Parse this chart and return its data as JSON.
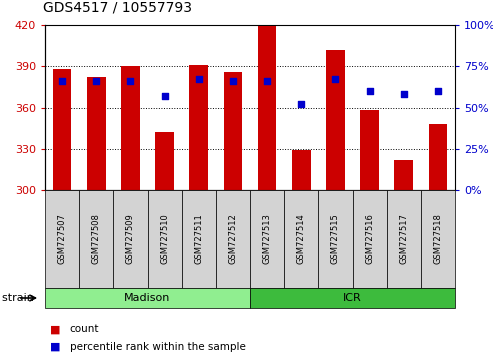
{
  "title": "GDS4517 / 10557793",
  "samples": [
    "GSM727507",
    "GSM727508",
    "GSM727509",
    "GSM727510",
    "GSM727511",
    "GSM727512",
    "GSM727513",
    "GSM727514",
    "GSM727515",
    "GSM727516",
    "GSM727517",
    "GSM727518"
  ],
  "counts": [
    388,
    382,
    390,
    342,
    391,
    386,
    419,
    329,
    402,
    358,
    322,
    348
  ],
  "percentiles": [
    66,
    66,
    66,
    57,
    67,
    66,
    66,
    52,
    67,
    60,
    58,
    60
  ],
  "ylim_left": [
    300,
    420
  ],
  "ylim_right": [
    0,
    100
  ],
  "y_ticks_left": [
    300,
    330,
    360,
    390,
    420
  ],
  "y_ticks_right": [
    0,
    25,
    50,
    75,
    100
  ],
  "bar_color": "#cc0000",
  "dot_color": "#0000cc",
  "bar_width": 0.55,
  "groups": [
    {
      "label": "Madison",
      "start": 0,
      "end": 5,
      "color": "#90ee90"
    },
    {
      "label": "ICR",
      "start": 6,
      "end": 11,
      "color": "#3dbb3d"
    }
  ],
  "strain_label": "strain",
  "legend_count_label": "count",
  "legend_pct_label": "percentile rank within the sample",
  "plot_bg": "#ffffff",
  "tick_color_left": "#cc0000",
  "tick_color_right": "#0000cc",
  "tick_label_fontsize": 8,
  "sample_label_fontsize": 6,
  "title_fontsize": 10,
  "group_label_fontsize": 8,
  "legend_fontsize": 7.5
}
